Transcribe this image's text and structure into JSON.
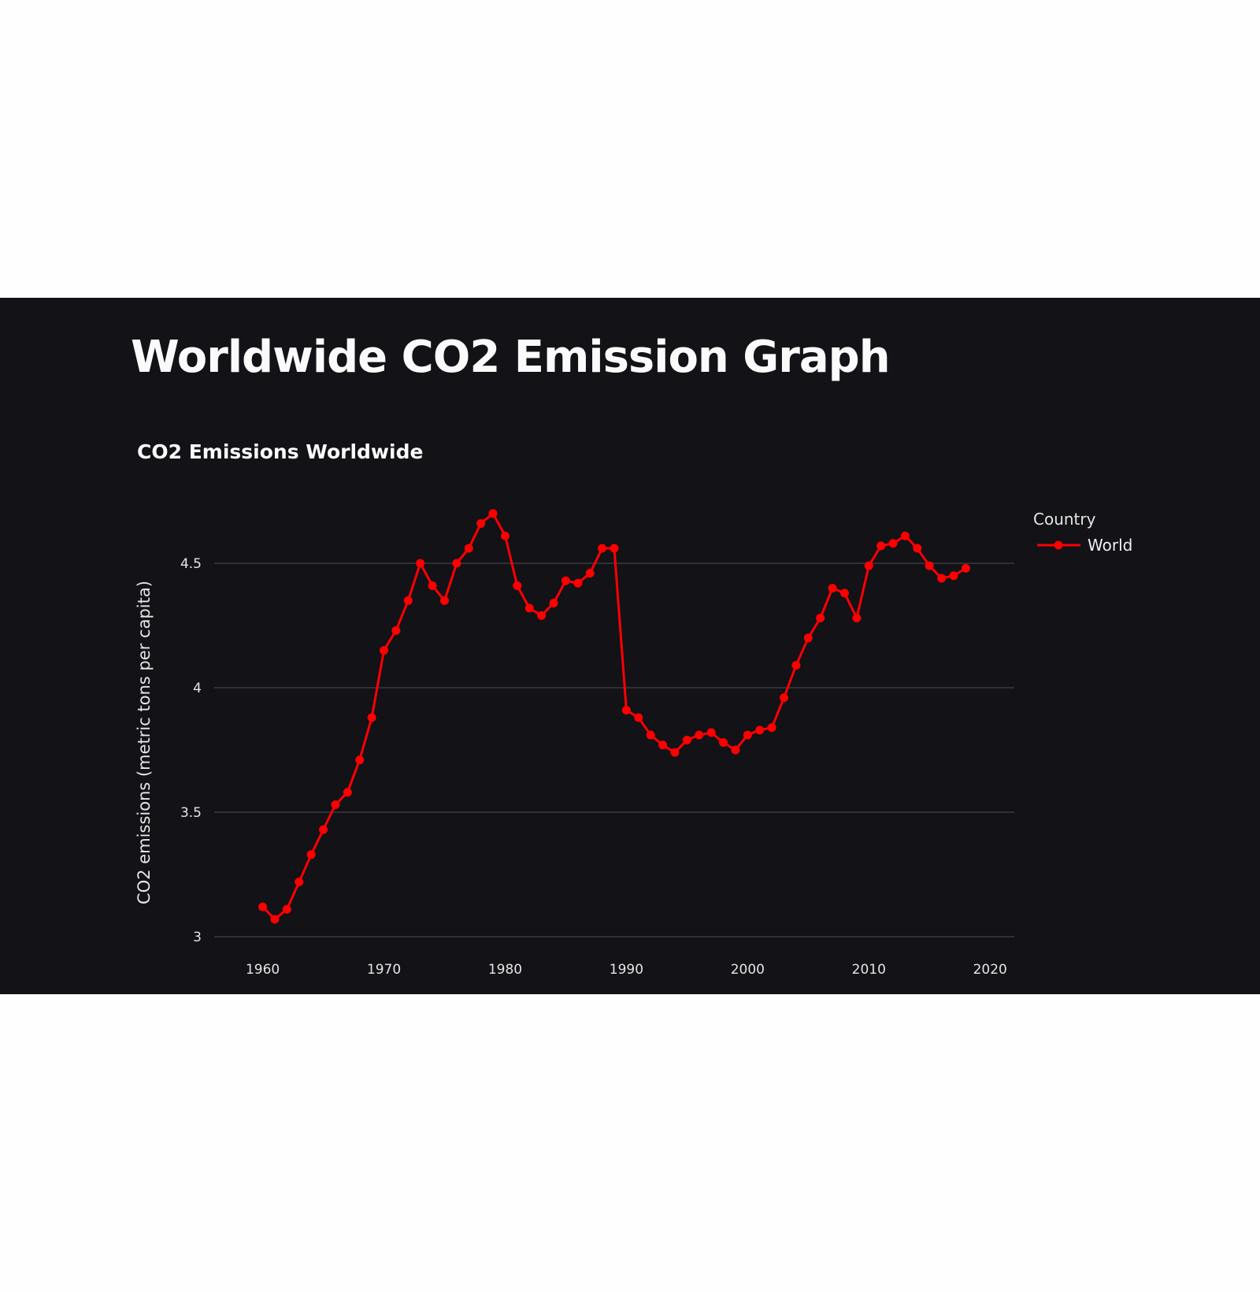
{
  "page": {
    "title": "Worldwide CO2 Emission Graph"
  },
  "chart_data": {
    "type": "line",
    "title": "CO2 Emissions Worldwide",
    "xlabel": "",
    "ylabel": "CO2 emissions (metric tons per capita)",
    "xlim": [
      1956,
      2022
    ],
    "ylim": [
      3,
      4.75
    ],
    "x_ticks": [
      "1960",
      "1970",
      "1980",
      "1990",
      "2000",
      "2010",
      "2020"
    ],
    "y_ticks": [
      "3",
      "3.5",
      "4",
      "4.5"
    ],
    "grid": "horizontal",
    "legend": {
      "title": "Country",
      "position": "right",
      "entries": [
        "World"
      ]
    },
    "series": [
      {
        "name": "World",
        "color": "#ff0000",
        "x": [
          1960,
          1961,
          1962,
          1963,
          1964,
          1965,
          1966,
          1967,
          1968,
          1969,
          1970,
          1971,
          1972,
          1973,
          1974,
          1975,
          1976,
          1977,
          1978,
          1979,
          1980,
          1981,
          1982,
          1983,
          1984,
          1985,
          1986,
          1987,
          1988,
          1989,
          1990,
          1991,
          1992,
          1993,
          1994,
          1995,
          1996,
          1997,
          1998,
          1999,
          2000,
          2001,
          2002,
          2003,
          2004,
          2005,
          2006,
          2007,
          2008,
          2009,
          2010,
          2011,
          2012,
          2013,
          2014,
          2015,
          2016,
          2017,
          2018
        ],
        "values": [
          3.12,
          3.07,
          3.11,
          3.22,
          3.33,
          3.43,
          3.53,
          3.58,
          3.71,
          3.88,
          4.15,
          4.23,
          4.35,
          4.5,
          4.41,
          4.35,
          4.5,
          4.56,
          4.66,
          4.7,
          4.61,
          4.41,
          4.32,
          4.29,
          4.34,
          4.43,
          4.42,
          4.46,
          4.56,
          4.56,
          3.91,
          3.88,
          3.81,
          3.77,
          3.74,
          3.79,
          3.81,
          3.82,
          3.78,
          3.75,
          3.81,
          3.83,
          3.84,
          3.96,
          4.09,
          4.2,
          4.28,
          4.4,
          4.38,
          4.28,
          4.49,
          4.57,
          4.58,
          4.61,
          4.56,
          4.49,
          4.44,
          4.45,
          4.48
        ]
      }
    ]
  }
}
